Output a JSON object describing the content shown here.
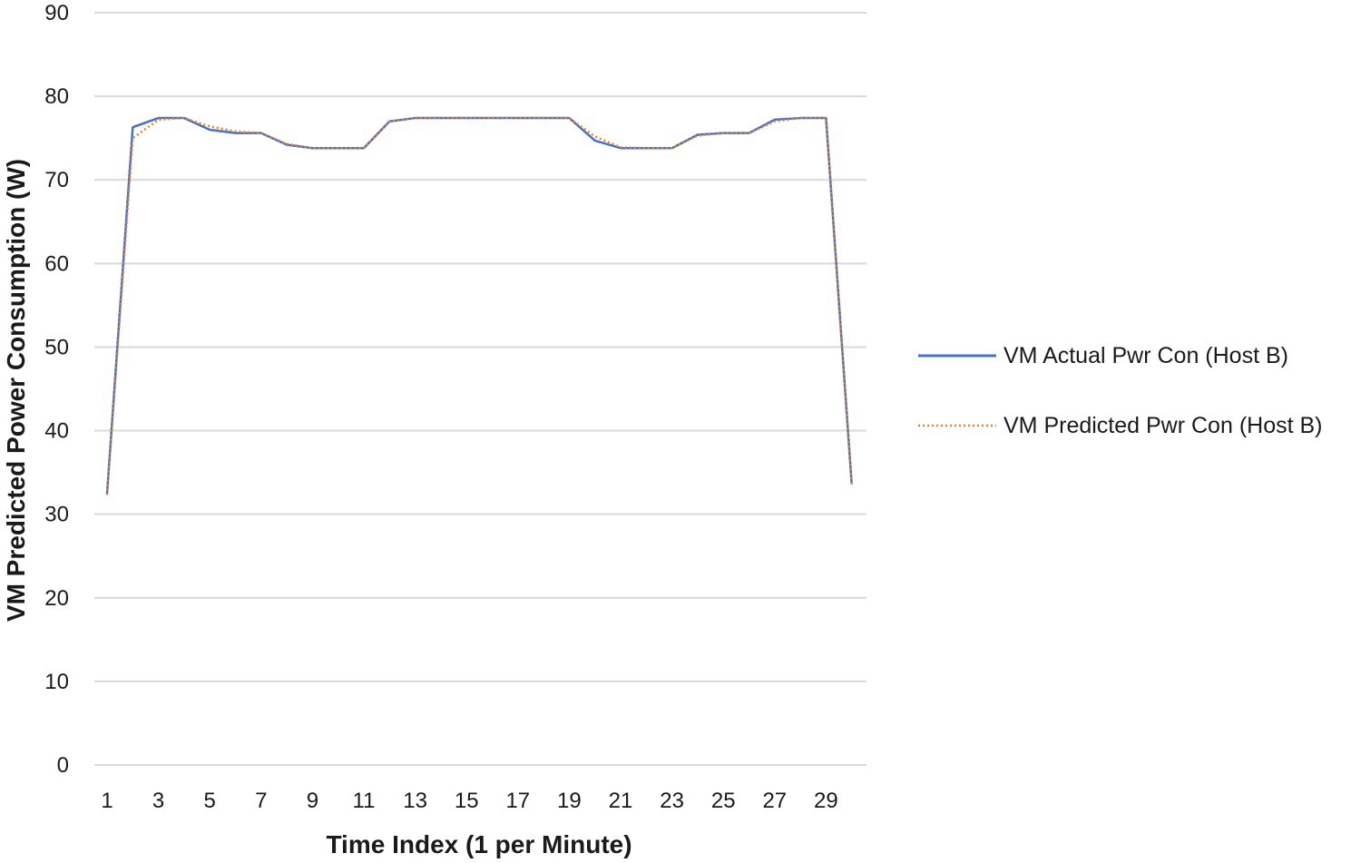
{
  "chart_data": {
    "type": "line",
    "title": "",
    "xlabel": "Time Index (1 per Minute)",
    "ylabel": "VM Predicted Power Consumption (W)",
    "ylim": [
      0,
      90
    ],
    "yticks": [
      0,
      10,
      20,
      30,
      40,
      50,
      60,
      70,
      80,
      90
    ],
    "x": [
      1,
      2,
      3,
      4,
      5,
      6,
      7,
      8,
      9,
      10,
      11,
      12,
      13,
      14,
      15,
      16,
      17,
      18,
      19,
      20,
      21,
      22,
      23,
      24,
      25,
      26,
      27,
      28,
      29,
      30
    ],
    "xtick_labels": [
      1,
      3,
      5,
      7,
      9,
      11,
      13,
      15,
      17,
      19,
      21,
      23,
      25,
      27,
      29
    ],
    "grid": true,
    "legend_position": "right",
    "series": [
      {
        "name": "VM Actual Pwr Con (Host B)",
        "color": "#4472c4",
        "style": "solid",
        "values": [
          32.5,
          76.3,
          77.4,
          77.4,
          76.0,
          75.6,
          75.6,
          74.2,
          73.8,
          73.8,
          73.8,
          77.0,
          77.4,
          77.4,
          77.4,
          77.4,
          77.4,
          77.4,
          77.4,
          74.7,
          73.8,
          73.8,
          73.8,
          75.4,
          75.6,
          75.6,
          77.2,
          77.4,
          77.4,
          33.6
        ]
      },
      {
        "name": "VM Predicted Pwr Con (Host B)",
        "color": "#ed7d31",
        "style": "dotted",
        "values": [
          32.3,
          75.0,
          77.2,
          77.4,
          76.4,
          75.8,
          75.6,
          74.3,
          73.8,
          73.8,
          73.8,
          77.0,
          77.4,
          77.4,
          77.4,
          77.4,
          77.4,
          77.4,
          77.4,
          75.2,
          73.9,
          73.8,
          73.8,
          75.3,
          75.6,
          75.6,
          77.0,
          77.4,
          77.4,
          33.4
        ]
      }
    ]
  }
}
